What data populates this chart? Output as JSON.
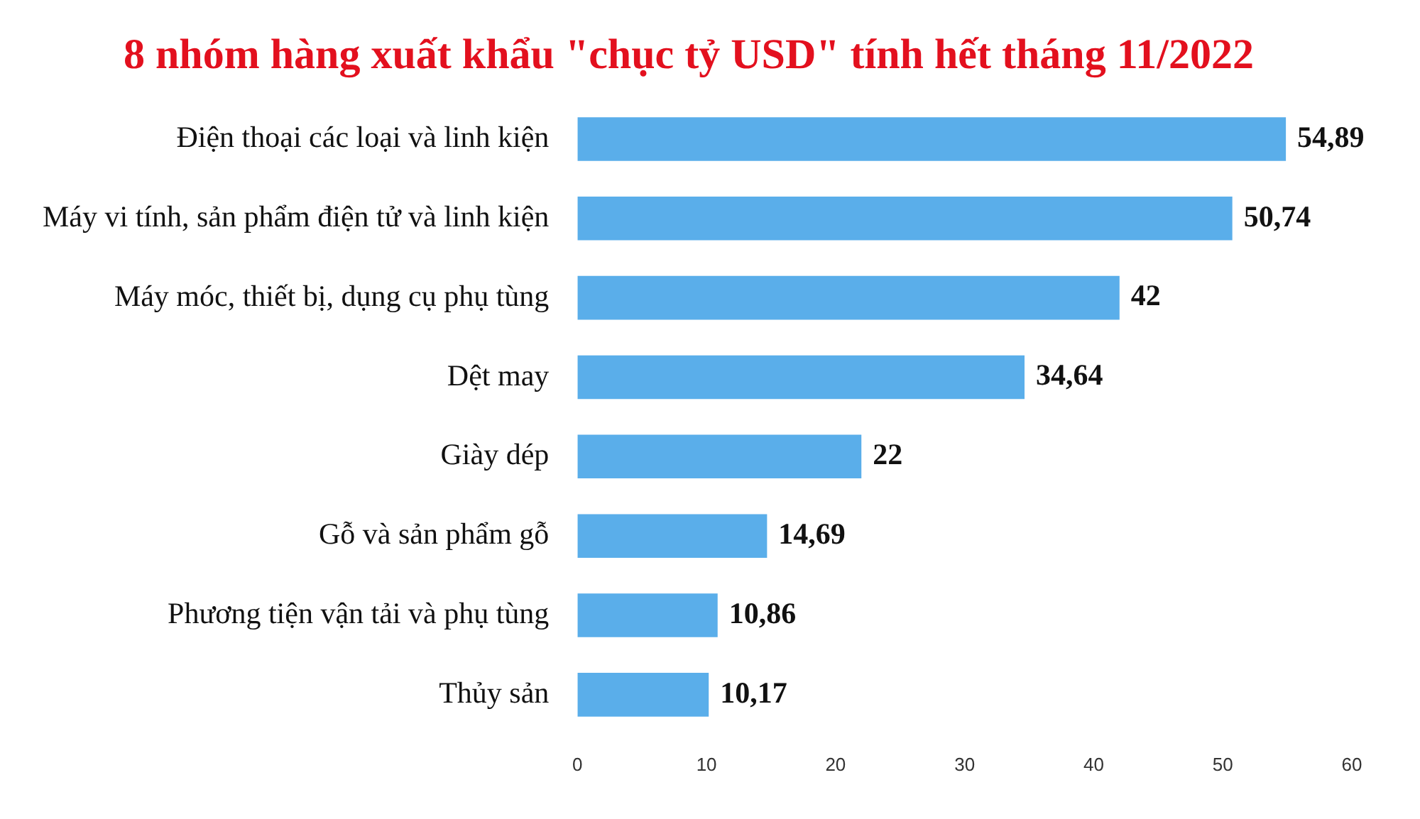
{
  "chart_data": {
    "type": "bar",
    "orientation": "horizontal",
    "title": "8 nhóm hàng xuất khẩu \"chục tỷ USD\" tính hết tháng 11/2022",
    "categories": [
      "Điện thoại các loại và linh kiện",
      "Máy vi tính, sản phẩm điện tử và linh kiện",
      "Máy móc, thiết bị, dụng cụ phụ tùng",
      "Dệt may",
      "Giày dép",
      "Gỗ và sản phẩm gỗ",
      "Phương tiện vận tải và phụ tùng",
      "Thủy sản"
    ],
    "values": [
      54.89,
      50.74,
      42,
      34.64,
      22,
      14.69,
      10.86,
      10.17
    ],
    "value_labels": [
      "54,89",
      "50,74",
      "42",
      "34,64",
      "22",
      "14,69",
      "10,86",
      "10,17"
    ],
    "color": "#5aaeea",
    "xlim": [
      0,
      60
    ],
    "xticks": [
      0,
      10,
      20,
      30,
      40,
      50,
      60
    ],
    "grid": false,
    "legend": false
  }
}
